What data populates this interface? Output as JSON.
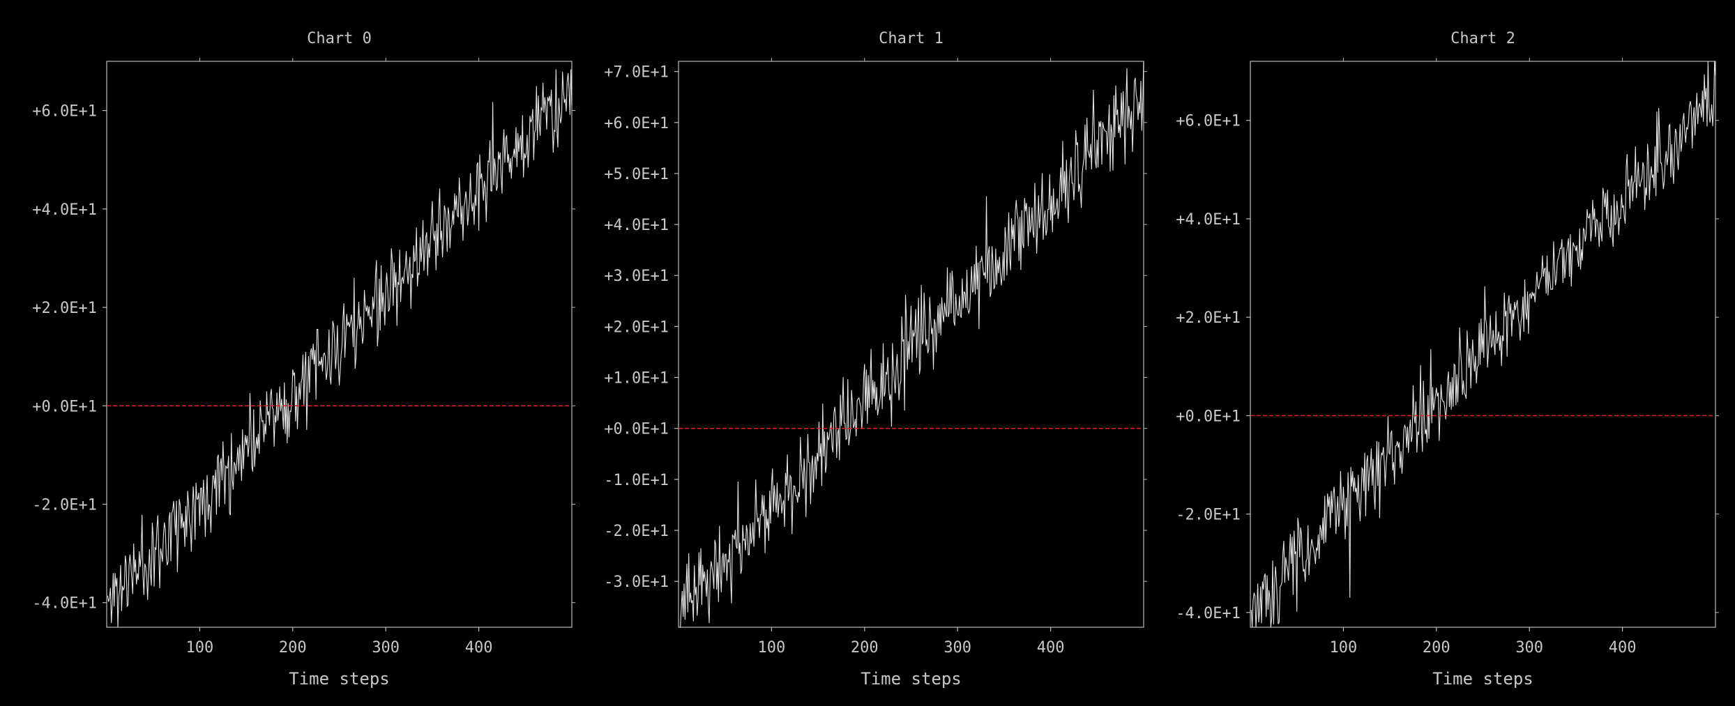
{
  "colors": {
    "background": "#000000",
    "axis": "#bdbdbd",
    "series": "#e6e6e6",
    "baseline": "#e02020",
    "text": "#c8c8c8"
  },
  "chart_data": [
    {
      "type": "line",
      "title": "Chart 0",
      "xlabel": "Time steps",
      "ylabel": "",
      "xlim": [
        0,
        500
      ],
      "ylim": [
        -45,
        70
      ],
      "xticks": [
        100,
        200,
        300,
        400
      ],
      "xtick_labels": [
        "100",
        "200",
        "300",
        "400"
      ],
      "yticks": [
        -40,
        -20,
        0,
        20,
        40,
        60
      ],
      "ytick_labels": [
        "-4.0E+1",
        "-2.0E+1",
        "+0.0E+1",
        "+2.0E+1",
        "+4.0E+1",
        "+6.0E+1"
      ],
      "grid": false,
      "baseline": 0,
      "series": [
        {
          "start": -40,
          "end": 65,
          "noise": 4,
          "seed": 11
        }
      ]
    },
    {
      "type": "line",
      "title": "Chart 1",
      "xlabel": "Time steps",
      "ylabel": "",
      "xlim": [
        0,
        500
      ],
      "ylim": [
        -39,
        72
      ],
      "xticks": [
        100,
        200,
        300,
        400
      ],
      "xtick_labels": [
        "100",
        "200",
        "300",
        "400"
      ],
      "yticks": [
        -30,
        -20,
        -10,
        0,
        10,
        20,
        30,
        40,
        50,
        60,
        70
      ],
      "ytick_labels": [
        "-3.0E+1",
        "-2.0E+1",
        "-1.0E+1",
        "+0.0E+1",
        "+1.0E+1",
        "+2.0E+1",
        "+3.0E+1",
        "+4.0E+1",
        "+5.0E+1",
        "+6.0E+1",
        "+7.0E+1"
      ],
      "grid": false,
      "baseline": 0,
      "series": [
        {
          "start": -36,
          "end": 66,
          "noise": 4,
          "seed": 23
        }
      ]
    },
    {
      "type": "line",
      "title": "Chart 2",
      "xlabel": "Time steps",
      "ylabel": "",
      "xlim": [
        0,
        500
      ],
      "ylim": [
        -43,
        72
      ],
      "xticks": [
        100,
        200,
        300,
        400
      ],
      "xtick_labels": [
        "100",
        "200",
        "300",
        "400"
      ],
      "yticks": [
        -40,
        -20,
        0,
        20,
        40,
        60
      ],
      "ytick_labels": [
        "-4.0E+1",
        "-2.0E+1",
        "+0.0E+1",
        "+2.0E+1",
        "+4.0E+1",
        "+6.0E+1"
      ],
      "grid": false,
      "baseline": 0,
      "series": [
        {
          "start": -40,
          "end": 66,
          "noise": 4,
          "seed": 37
        }
      ]
    }
  ]
}
